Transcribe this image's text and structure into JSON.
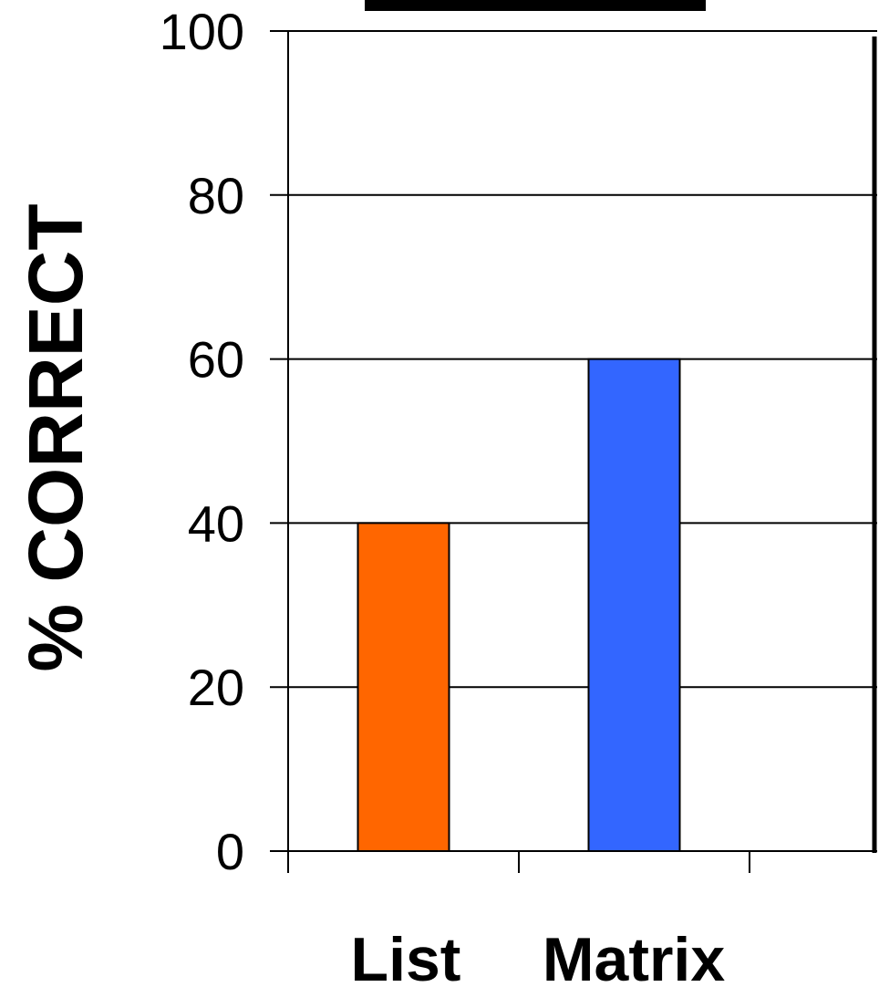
{
  "chart_data": {
    "type": "bar",
    "categories": [
      "List",
      "Matrix"
    ],
    "values": [
      40,
      60
    ],
    "title": "",
    "xlabel": "",
    "ylabel": "% CORRECT",
    "ylim": [
      0,
      100
    ],
    "yticks": [
      "0",
      "20",
      "40",
      "60",
      "80",
      "100"
    ],
    "grid": true,
    "legend": "none",
    "colors": {
      "List": "#ff6600",
      "Matrix": "#3366ff",
      "gridline": "#000000",
      "axis": "#000000"
    }
  }
}
